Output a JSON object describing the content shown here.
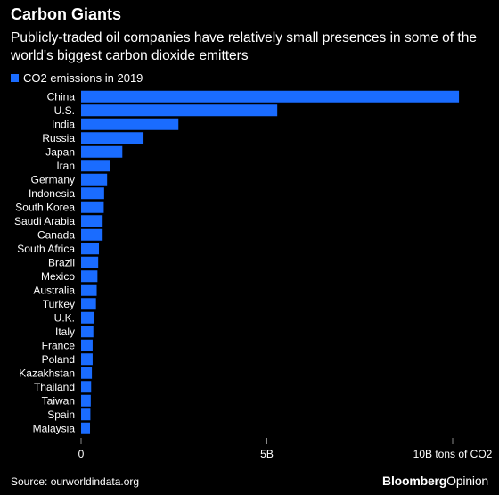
{
  "header": {
    "title": "Carbon Giants",
    "subtitle": "Publicly-traded oil companies have relatively small presences in some of the world's biggest carbon dioxide emitters"
  },
  "footer": {
    "source": "Source: ourworldindata.org",
    "brand_bold": "Bloomberg",
    "brand_regular": "Opinion"
  },
  "chart_data": {
    "type": "bar",
    "orientation": "horizontal",
    "categories": [
      "China",
      "U.S.",
      "India",
      "Russia",
      "Japan",
      "Iran",
      "Germany",
      "Indonesia",
      "South Korea",
      "Saudi Arabia",
      "Canada",
      "South Africa",
      "Brazil",
      "Mexico",
      "Australia",
      "Turkey",
      "U.K.",
      "Italy",
      "France",
      "Poland",
      "Kazakhstan",
      "Thailand",
      "Taiwan",
      "Spain",
      "Malaysia"
    ],
    "series": [
      {
        "name": "CO2 emissions in 2019",
        "values": [
          10.17,
          5.28,
          2.62,
          1.68,
          1.11,
          0.78,
          0.7,
          0.62,
          0.61,
          0.58,
          0.58,
          0.48,
          0.46,
          0.44,
          0.42,
          0.4,
          0.36,
          0.33,
          0.31,
          0.31,
          0.29,
          0.27,
          0.26,
          0.25,
          0.24
        ],
        "color": "#1a6cff"
      }
    ],
    "xlim": [
      0,
      10.5
    ],
    "xticks": [
      0,
      5,
      10
    ],
    "xtick_labels": [
      "0",
      "5B",
      "10B tons of CO2"
    ],
    "grid": false,
    "legend": "top-left"
  }
}
